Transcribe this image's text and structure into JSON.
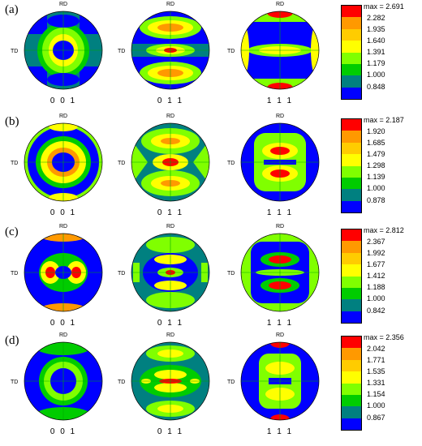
{
  "colors": {
    "levels_low_to_high": [
      "#0000ff",
      "#008080",
      "#00cc00",
      "#80ff00",
      "#ffff00",
      "#ffcc00",
      "#ff9900",
      "#ff0000"
    ],
    "circle_outline": "#000000",
    "axis_lines": "#00aa00"
  },
  "axis_labels": {
    "top": "RD",
    "left": "TD"
  },
  "planes": [
    "0 0 1",
    "0 1 1",
    "1 1 1"
  ],
  "rows": [
    {
      "label": "(a)",
      "legend": {
        "max": "max = 2.691",
        "values": [
          "2.282",
          "1.935",
          "1.640",
          "1.391",
          "1.179",
          "1.000",
          "0.848"
        ]
      }
    },
    {
      "label": "(b)",
      "legend": {
        "max": "max = 2.187",
        "values": [
          "1.920",
          "1.685",
          "1.479",
          "1.298",
          "1.139",
          "1.000",
          "0.878"
        ]
      }
    },
    {
      "label": "(c)",
      "legend": {
        "max": "max = 2.812",
        "values": [
          "2.367",
          "1.992",
          "1.677",
          "1.412",
          "1.188",
          "1.000",
          "0.842"
        ]
      }
    },
    {
      "label": "(d)",
      "legend": {
        "max": "max = 2.356",
        "values": [
          "2.042",
          "1.771",
          "1.535",
          "1.331",
          "1.154",
          "1.000",
          "0.867"
        ]
      }
    }
  ]
}
